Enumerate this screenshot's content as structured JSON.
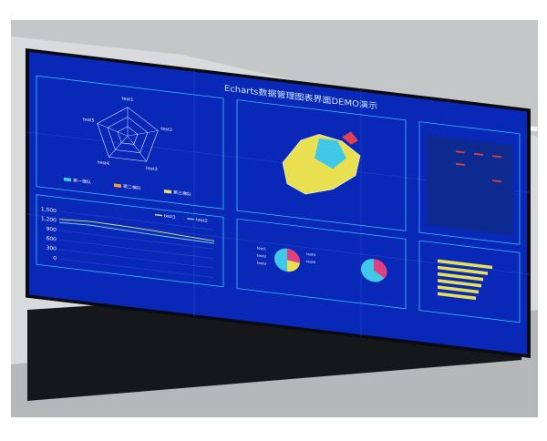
{
  "screen_title": "Echarts数据管理图表界面DEMO演示",
  "radar": {
    "labels": [
      "test1",
      "test2",
      "test3",
      "test4",
      "test5"
    ],
    "legend": [
      {
        "name": "第一梯队",
        "color": "#3ad0e0"
      },
      {
        "name": "第二梯队",
        "color": "#f0a030"
      },
      {
        "name": "第三梯队",
        "color": "#e8e070"
      }
    ]
  },
  "line_chart": {
    "type": "line",
    "categories": [
      null,
      null,
      null,
      null,
      null,
      null
    ],
    "series": [
      {
        "name": "test1",
        "color": "#d8f060",
        "values": [
          1250,
          1300,
          1280,
          1250,
          1200,
          1150
        ]
      },
      {
        "name": "test2",
        "color": "#80e0f0",
        "values": [
          1150,
          1180,
          1150,
          1120,
          1100,
          1080
        ]
      }
    ],
    "ylim": [
      0,
      1500
    ],
    "yticks": [
      0,
      300,
      600,
      900,
      {
        "value": 1200,
        "label": "1,200"
      },
      {
        "value": 1500,
        "label": "1,500"
      }
    ]
  },
  "pie_labels": [
    "test1",
    "test2",
    "test3",
    "test4",
    "test5"
  ]
}
